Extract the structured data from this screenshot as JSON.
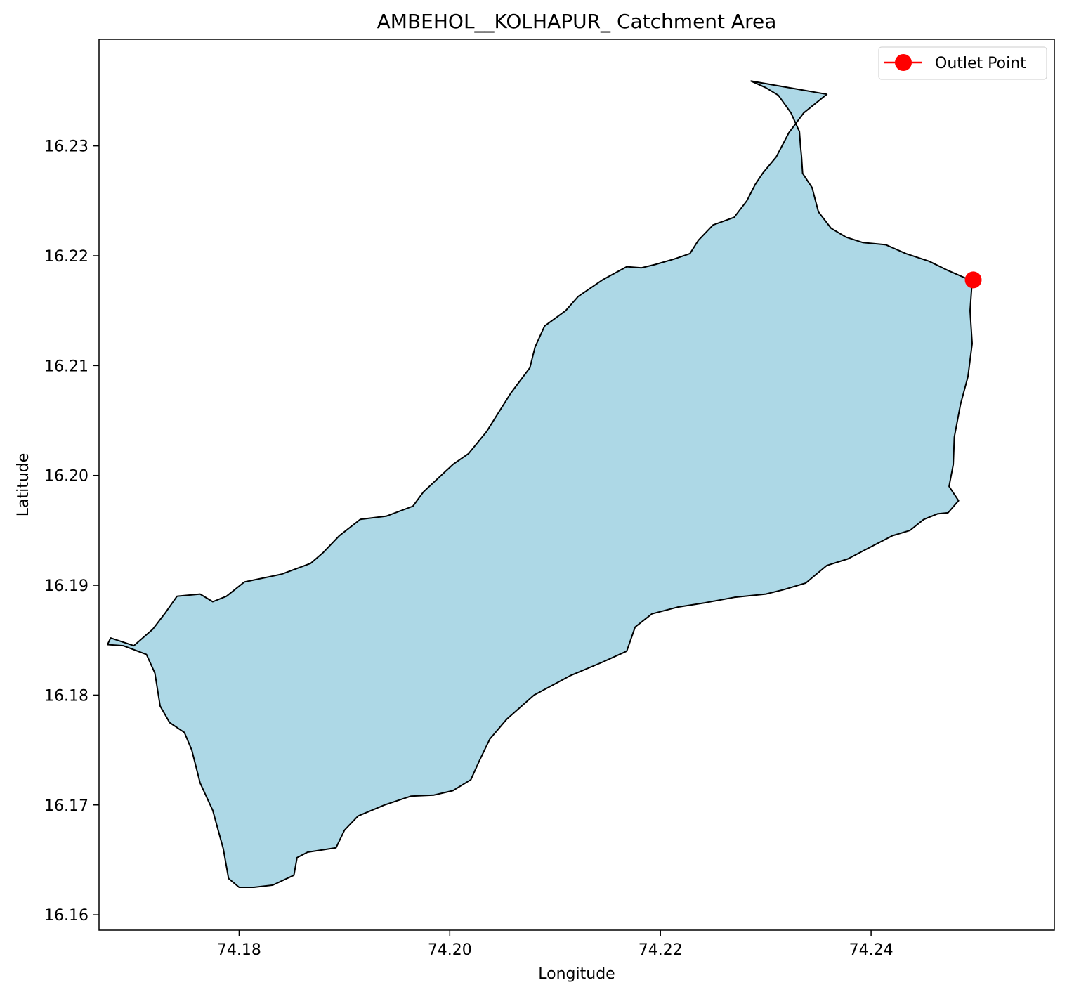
{
  "chart_data": {
    "type": "area",
    "title": "AMBEHOL__KOLHAPUR_ Catchment Area",
    "xlabel": "Longitude",
    "ylabel": "Latitude",
    "xlim": [
      74.1667,
      74.2574
    ],
    "ylim": [
      16.1586,
      16.2397
    ],
    "xticks": [
      74.18,
      74.2,
      74.22,
      74.24
    ],
    "xtick_labels": [
      "74.18",
      "74.20",
      "74.22",
      "74.24"
    ],
    "yticks": [
      16.16,
      16.17,
      16.18,
      16.19,
      16.2,
      16.21,
      16.22,
      16.23
    ],
    "ytick_labels": [
      "16.16",
      "16.17",
      "16.18",
      "16.19",
      "16.20",
      "16.21",
      "16.22",
      "16.23"
    ],
    "grid": false,
    "legend": {
      "location": "upper right",
      "entries": [
        {
          "label": "Outlet Point",
          "color": "#ff0000",
          "marker": "circle",
          "line": true
        }
      ]
    },
    "catchment": {
      "fill_color": "#add8e6",
      "edge_color": "#000000",
      "boundary": [
        [
          74.2286,
          16.2359
        ],
        [
          74.23,
          16.2353
        ],
        [
          74.2312,
          16.2346
        ],
        [
          74.2324,
          16.233
        ],
        [
          74.2332,
          16.2313
        ],
        [
          74.2333,
          16.23
        ],
        [
          74.2334,
          16.229
        ],
        [
          74.2335,
          16.2275
        ],
        [
          74.2344,
          16.2262
        ],
        [
          74.235,
          16.224
        ],
        [
          74.2362,
          16.2225
        ],
        [
          74.2376,
          16.2217
        ],
        [
          74.2392,
          16.2212
        ],
        [
          74.2414,
          16.221
        ],
        [
          74.2433,
          16.2202
        ],
        [
          74.2455,
          16.2195
        ],
        [
          74.2472,
          16.2187
        ],
        [
          74.2496,
          16.2177
        ],
        [
          74.2494,
          16.215
        ],
        [
          74.2496,
          16.212
        ],
        [
          74.2492,
          16.209
        ],
        [
          74.2485,
          16.2065
        ],
        [
          74.2479,
          16.2035
        ],
        [
          74.2478,
          16.201
        ],
        [
          74.2474,
          16.199
        ],
        [
          74.2483,
          16.1977
        ],
        [
          74.2473,
          16.1966
        ],
        [
          74.2463,
          16.1965
        ],
        [
          74.245,
          16.196
        ],
        [
          74.2437,
          16.195
        ],
        [
          74.242,
          16.1945
        ],
        [
          74.24,
          16.1935
        ],
        [
          74.2378,
          16.1924
        ],
        [
          74.2358,
          16.1918
        ],
        [
          74.2338,
          16.1902
        ],
        [
          74.2317,
          16.1896
        ],
        [
          74.23,
          16.1892
        ],
        [
          74.227,
          16.1889
        ],
        [
          74.2242,
          16.1884
        ],
        [
          74.2216,
          16.188
        ],
        [
          74.2192,
          16.1874
        ],
        [
          74.2176,
          16.1862
        ],
        [
          74.2168,
          16.184
        ],
        [
          74.2145,
          16.183
        ],
        [
          74.2115,
          16.1818
        ],
        [
          74.208,
          16.18
        ],
        [
          74.2054,
          16.1778
        ],
        [
          74.2038,
          16.176
        ],
        [
          74.2028,
          16.174
        ],
        [
          74.202,
          16.1723
        ],
        [
          74.2003,
          16.1713
        ],
        [
          74.1985,
          16.1709
        ],
        [
          74.1963,
          16.1708
        ],
        [
          74.1938,
          16.17
        ],
        [
          74.1913,
          16.169
        ],
        [
          74.19,
          16.1677
        ],
        [
          74.1892,
          16.1661
        ],
        [
          74.1865,
          16.1657
        ],
        [
          74.1855,
          16.1652
        ],
        [
          74.1852,
          16.1636
        ],
        [
          74.1832,
          16.1627
        ],
        [
          74.1814,
          16.1625
        ],
        [
          74.18,
          16.1625
        ],
        [
          74.179,
          16.1633
        ],
        [
          74.1785,
          16.166
        ],
        [
          74.1775,
          16.1695
        ],
        [
          74.1763,
          16.172
        ],
        [
          74.1755,
          16.175
        ],
        [
          74.1748,
          16.1766
        ],
        [
          74.1734,
          16.1775
        ],
        [
          74.1725,
          16.179
        ],
        [
          74.172,
          16.182
        ],
        [
          74.1712,
          16.1837
        ],
        [
          74.169,
          16.1845
        ],
        [
          74.1675,
          16.1846
        ],
        [
          74.1678,
          16.1852
        ],
        [
          74.17,
          16.1845
        ],
        [
          74.1718,
          16.186
        ],
        [
          74.173,
          16.1875
        ],
        [
          74.1741,
          16.189
        ],
        [
          74.1763,
          16.1892
        ],
        [
          74.1775,
          16.1885
        ],
        [
          74.1788,
          16.189
        ],
        [
          74.1805,
          16.1903
        ],
        [
          74.184,
          16.191
        ],
        [
          74.1868,
          16.192
        ],
        [
          74.188,
          16.193
        ],
        [
          74.1895,
          16.1945
        ],
        [
          74.1915,
          16.196
        ],
        [
          74.194,
          16.1963
        ],
        [
          74.1965,
          16.1972
        ],
        [
          74.1975,
          16.1985
        ],
        [
          74.2003,
          16.201
        ],
        [
          74.2018,
          16.202
        ],
        [
          74.2035,
          16.204
        ],
        [
          74.2058,
          16.2075
        ],
        [
          74.2076,
          16.2098
        ],
        [
          74.2081,
          16.2117
        ],
        [
          74.209,
          16.2136
        ],
        [
          74.211,
          16.215
        ],
        [
          74.2122,
          16.2163
        ],
        [
          74.2145,
          16.2178
        ],
        [
          74.2168,
          16.219
        ],
        [
          74.2182,
          16.2189
        ],
        [
          74.2195,
          16.2192
        ],
        [
          74.2213,
          16.2197
        ],
        [
          74.2228,
          16.2202
        ],
        [
          74.2236,
          16.2214
        ],
        [
          74.225,
          16.2228
        ],
        [
          74.227,
          16.2235
        ],
        [
          74.2282,
          16.225
        ],
        [
          74.229,
          16.2265
        ],
        [
          74.2297,
          16.2275
        ],
        [
          74.231,
          16.229
        ],
        [
          74.2322,
          16.2312
        ],
        [
          74.2336,
          16.233
        ],
        [
          74.2358,
          16.2347
        ],
        [
          74.2286,
          16.2359
        ]
      ]
    },
    "outlet_point": {
      "label": "Outlet Point",
      "x": 74.2497,
      "y": 16.2178,
      "color": "#ff0000"
    }
  }
}
